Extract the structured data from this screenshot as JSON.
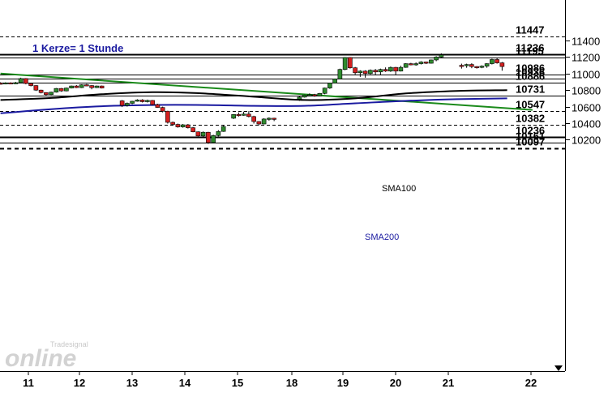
{
  "chart_data": {
    "type": "candlestick",
    "annotation": "1 Kerze= 1 Stunde",
    "ylim": [
      10075,
      11520
    ],
    "y_ticks": [
      "11400",
      "11200",
      "11000",
      "10800",
      "10600",
      "10400",
      "10200"
    ],
    "x_ticks": [
      "11",
      "12",
      "13",
      "14",
      "15",
      "18",
      "19",
      "20",
      "21",
      "22"
    ],
    "levels": [
      {
        "value": 11447,
        "label": "11447",
        "style": "dashed"
      },
      {
        "value": 11236,
        "label": "11236",
        "style": "thick"
      },
      {
        "value": 11195,
        "label": "11195",
        "style": "solid"
      },
      {
        "value": 10986,
        "label": "10986",
        "style": "solid"
      },
      {
        "value": 10936,
        "label": "10936",
        "style": "solid"
      },
      {
        "value": 10886,
        "label": "10886",
        "style": "solid"
      },
      {
        "value": 10731,
        "label": "10731",
        "style": "solid"
      },
      {
        "value": 10547,
        "label": "10547",
        "style": "dashed"
      },
      {
        "value": 10382,
        "label": "10382",
        "style": "dashed"
      },
      {
        "value": 10236,
        "label": "10236",
        "style": "thick"
      },
      {
        "value": 10161,
        "label": "10161",
        "style": "solid"
      },
      {
        "value": 10097,
        "label": "10097",
        "style": "thickdashed"
      }
    ],
    "sma": [
      {
        "name": "SMA100",
        "color": "#000000",
        "points": [
          [
            0,
            10680
          ],
          [
            1,
            10705
          ],
          [
            2,
            10750
          ],
          [
            3,
            10775
          ],
          [
            4,
            10760
          ],
          [
            5,
            10720
          ],
          [
            6,
            10680
          ],
          [
            7,
            10700
          ],
          [
            8,
            10760
          ],
          [
            9,
            10790
          ],
          [
            10,
            10800
          ]
        ]
      },
      {
        "name": "SMA200",
        "color": "#1a1aa0",
        "points": [
          [
            0,
            10520
          ],
          [
            1,
            10570
          ],
          [
            2,
            10605
          ],
          [
            3,
            10620
          ],
          [
            4,
            10620
          ],
          [
            5,
            10610
          ],
          [
            6,
            10610
          ],
          [
            7,
            10640
          ],
          [
            8,
            10670
          ],
          [
            9,
            10690
          ],
          [
            10,
            10700
          ]
        ]
      }
    ],
    "trendline": {
      "color": "#1a8a1a",
      "from": [
        -0.55,
        11000
      ],
      "to": [
        9.95,
        10560
      ]
    },
    "candles": [
      [
        -0.55,
        10885,
        10880,
        10895,
        10870
      ],
      [
        -0.45,
        10880,
        10888,
        10895,
        10870
      ],
      [
        -0.35,
        10888,
        10880,
        10895,
        10872
      ],
      [
        -0.25,
        10880,
        10890,
        10900,
        10872
      ],
      [
        -0.15,
        10890,
        10940,
        10950,
        10885
      ],
      [
        -0.05,
        10940,
        10880,
        10945,
        10870
      ],
      [
        0.05,
        10880,
        10855,
        10885,
        10845
      ],
      [
        0.15,
        10855,
        10800,
        10860,
        10790
      ],
      [
        0.25,
        10800,
        10770,
        10805,
        10760
      ],
      [
        0.35,
        10770,
        10745,
        10775,
        10735
      ],
      [
        0.45,
        10745,
        10775,
        10780,
        10740
      ],
      [
        0.55,
        10775,
        10820,
        10825,
        10770
      ],
      [
        0.65,
        10820,
        10790,
        10825,
        10780
      ],
      [
        0.75,
        10790,
        10825,
        10830,
        10785
      ],
      [
        0.85,
        10825,
        10850,
        10855,
        10820
      ],
      [
        0.95,
        10850,
        10830,
        10860,
        10825
      ],
      [
        1.05,
        10830,
        10865,
        10870,
        10825
      ],
      [
        1.15,
        10865,
        10855,
        10875,
        10848
      ],
      [
        1.25,
        10855,
        10830,
        10860,
        10810
      ],
      [
        1.35,
        10830,
        10850,
        10855,
        10825
      ],
      [
        1.45,
        10850,
        10825,
        10855,
        10820
      ],
      [
        1.85,
        10670,
        10615,
        10680,
        10595
      ],
      [
        1.95,
        10615,
        10640,
        10650,
        10600
      ],
      [
        2.05,
        10640,
        10665,
        10670,
        10630
      ],
      [
        2.15,
        10665,
        10680,
        10690,
        10660
      ],
      [
        2.25,
        10680,
        10660,
        10690,
        10650
      ],
      [
        2.35,
        10660,
        10675,
        10685,
        10650
      ],
      [
        2.45,
        10675,
        10625,
        10680,
        10615
      ],
      [
        2.55,
        10625,
        10590,
        10635,
        10585
      ],
      [
        2.65,
        10590,
        10545,
        10600,
        10530
      ],
      [
        2.75,
        10545,
        10410,
        10550,
        10395
      ],
      [
        2.85,
        10410,
        10385,
        10420,
        10370
      ],
      [
        2.95,
        10385,
        10355,
        10395,
        10345
      ],
      [
        3.05,
        10355,
        10380,
        10390,
        10345
      ],
      [
        3.15,
        10380,
        10345,
        10390,
        10335
      ],
      [
        3.25,
        10345,
        10295,
        10355,
        10290
      ],
      [
        3.35,
        10295,
        10245,
        10300,
        10240
      ],
      [
        3.45,
        10245,
        10290,
        10300,
        10235
      ],
      [
        3.55,
        10290,
        10165,
        10295,
        10150
      ],
      [
        3.65,
        10165,
        10250,
        10260,
        10155
      ],
      [
        3.75,
        10250,
        10300,
        10315,
        10240
      ],
      [
        3.85,
        10300,
        10360,
        10375,
        10295
      ],
      [
        4.05,
        10460,
        10505,
        10510,
        10450
      ],
      [
        4.15,
        10505,
        10495,
        10530,
        10480
      ],
      [
        4.25,
        10495,
        10510,
        10540,
        10490
      ],
      [
        4.35,
        10510,
        10480,
        10545,
        10470
      ],
      [
        4.45,
        10480,
        10420,
        10490,
        10395
      ],
      [
        4.55,
        10420,
        10390,
        10425,
        10375
      ],
      [
        4.65,
        10390,
        10450,
        10460,
        10385
      ],
      [
        4.75,
        10450,
        10460,
        10470,
        10430
      ],
      [
        4.85,
        10460,
        10455,
        10465,
        10425
      ],
      [
        5.35,
        10690,
        10715,
        10730,
        10670
      ],
      [
        5.45,
        10715,
        10740,
        10745,
        10710
      ],
      [
        5.55,
        10740,
        10745,
        10760,
        10725
      ],
      [
        5.65,
        10745,
        10730,
        10755,
        10720
      ],
      [
        5.75,
        10730,
        10760,
        10765,
        10725
      ],
      [
        5.85,
        10760,
        10825,
        10830,
        10750
      ],
      [
        5.95,
        10825,
        10885,
        10890,
        10815
      ],
      [
        6.05,
        10885,
        10935,
        10940,
        10880
      ],
      [
        6.15,
        10935,
        11050,
        11060,
        10930
      ],
      [
        6.25,
        11050,
        11195,
        11200,
        11040
      ],
      [
        6.35,
        11195,
        11070,
        11200,
        11060
      ],
      [
        6.45,
        11070,
        11010,
        11080,
        10990
      ],
      [
        6.55,
        11010,
        11030,
        11040,
        10960
      ],
      [
        6.65,
        11030,
        11000,
        11040,
        10950
      ],
      [
        6.75,
        11000,
        11040,
        11050,
        10990
      ],
      [
        6.85,
        11040,
        11020,
        11055,
        10980
      ],
      [
        6.95,
        11020,
        11050,
        11060,
        10985
      ],
      [
        7.05,
        11050,
        11030,
        11075,
        11020
      ],
      [
        7.15,
        11030,
        11075,
        11085,
        11020
      ],
      [
        7.25,
        11075,
        11030,
        11080,
        10985
      ],
      [
        7.35,
        11030,
        11075,
        11095,
        11025
      ],
      [
        7.45,
        11075,
        11120,
        11125,
        11070
      ],
      [
        7.55,
        11120,
        11110,
        11130,
        11100
      ],
      [
        7.65,
        11110,
        11120,
        11135,
        11095
      ],
      [
        7.75,
        11120,
        11140,
        11150,
        11110
      ],
      [
        7.85,
        11140,
        11125,
        11145,
        11115
      ],
      [
        7.95,
        11125,
        11165,
        11170,
        11120
      ],
      [
        8.05,
        11165,
        11200,
        11210,
        11150
      ],
      [
        8.15,
        11200,
        11225,
        11245,
        11195
      ],
      [
        8.55,
        11100,
        11095,
        11120,
        11060
      ],
      [
        8.65,
        11095,
        11110,
        11120,
        11070
      ],
      [
        8.75,
        11110,
        11085,
        11125,
        11065
      ],
      [
        8.85,
        11085,
        11075,
        11090,
        11060
      ],
      [
        8.95,
        11075,
        11090,
        11100,
        11065
      ],
      [
        9.05,
        11090,
        11120,
        11125,
        11070
      ],
      [
        9.15,
        11120,
        11170,
        11180,
        11110
      ],
      [
        9.25,
        11170,
        11130,
        11190,
        11120
      ],
      [
        9.35,
        11130,
        11085,
        11140,
        11035
      ]
    ]
  },
  "branding": {
    "tagline": "Tradesignal",
    "wordmark": "online"
  }
}
